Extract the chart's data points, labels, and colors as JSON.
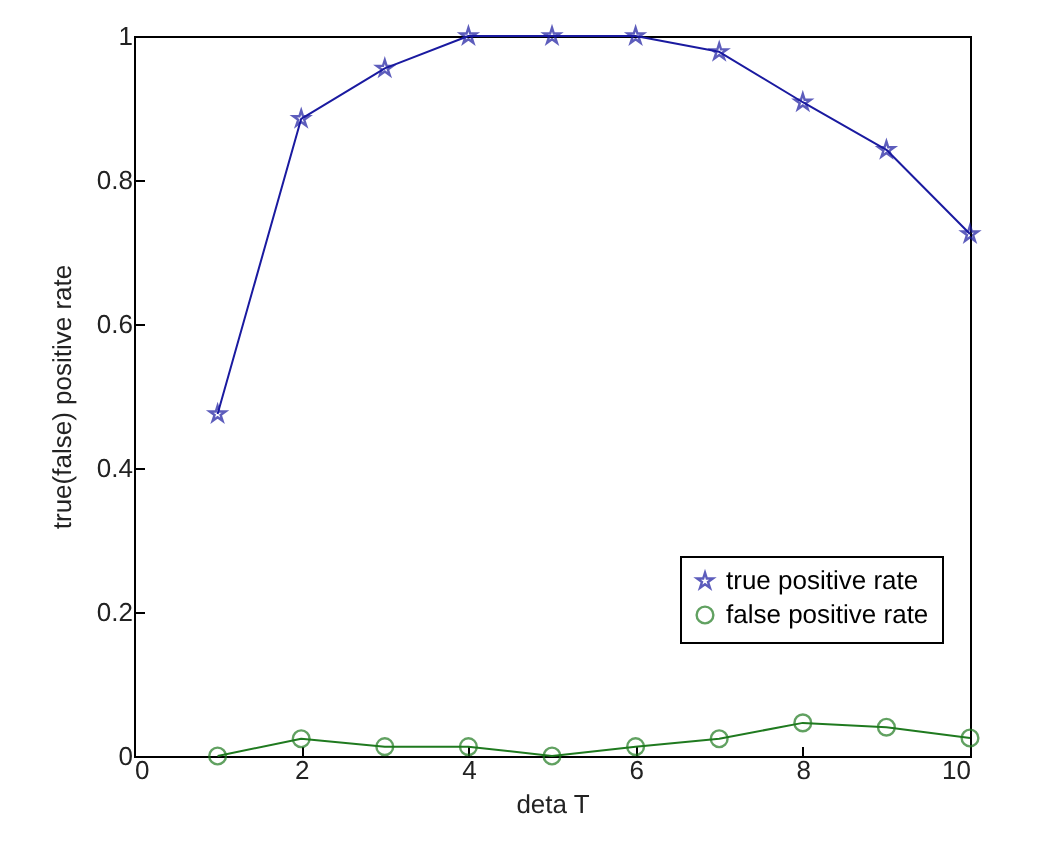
{
  "chart_data": {
    "type": "line",
    "xlabel": "deta T",
    "ylabel": "true(false) positive rate",
    "x": [
      1,
      2,
      3,
      4,
      5,
      6,
      7,
      8,
      9,
      10
    ],
    "series": [
      {
        "name": "true positive rate",
        "color": "#1a1aa0",
        "marker": "star",
        "values": [
          0.475,
          0.885,
          0.955,
          1,
          1,
          1,
          0.978,
          0.908,
          0.842,
          0.725
        ]
      },
      {
        "name": "false positive rate",
        "color": "#1f7a1f",
        "marker": "circle",
        "values": [
          0,
          0.024,
          0.013,
          0.013,
          0,
          0.013,
          0.024,
          0.046,
          0.04,
          0.025
        ]
      }
    ],
    "xlim": [
      0,
      10
    ],
    "xticks": [
      0,
      2,
      4,
      6,
      8,
      10
    ],
    "ylim": [
      0,
      1
    ],
    "yticks": [
      0,
      0.2,
      0.4,
      0.6,
      0.8,
      1
    ],
    "grid": false,
    "legend": "bottom right",
    "line_style": "solid"
  }
}
